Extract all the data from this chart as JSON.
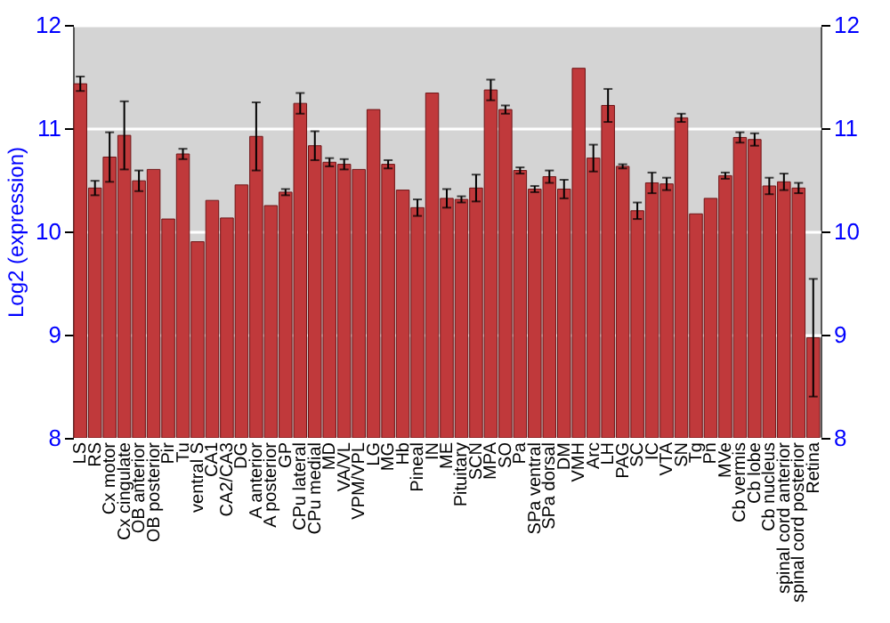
{
  "chart_data": {
    "type": "bar",
    "ylabel": "Log2 (expression)",
    "categories": [
      "LS",
      "RS",
      "Cx motor",
      "Cx cingulate",
      "OB anterior",
      "OB posterior",
      "Pir",
      "Tu",
      "ventral S",
      "CA1",
      "CA2/CA3",
      "DG",
      "A anterior",
      "A posterior",
      "GP",
      "CPu lateral",
      "CPu medial",
      "MD",
      "VA/VL",
      "VPM/VPL",
      "LG",
      "MG",
      "Hb",
      "Pineal",
      "IN",
      "ME",
      "Pituitary",
      "SCN",
      "MPA",
      "SO",
      "Pa",
      "SPa ventral",
      "SPa dorsal",
      "DM",
      "VMH",
      "Arc",
      "LH",
      "PAG",
      "SC",
      "IC",
      "VTA",
      "SN",
      "Tg",
      "Pn",
      "MVe",
      "Cb vermis",
      "Cb lobe",
      "Cb nucleus",
      "spinal cord anterior",
      "spinal cord posterior",
      "Retina"
    ],
    "values": [
      11.43,
      10.42,
      10.72,
      10.93,
      10.49,
      10.6,
      10.12,
      10.75,
      9.9,
      10.3,
      10.13,
      10.45,
      10.92,
      10.25,
      10.38,
      11.24,
      10.83,
      10.67,
      10.65,
      10.6,
      11.18,
      10.65,
      10.4,
      10.23,
      11.34,
      10.32,
      10.31,
      10.42,
      11.37,
      11.18,
      10.59,
      10.41,
      10.53,
      10.41,
      11.58,
      10.71,
      11.22,
      10.63,
      10.2,
      10.47,
      10.46,
      11.1,
      10.17,
      10.32,
      10.54,
      10.91,
      10.89,
      10.44,
      10.48,
      10.42,
      8.97
    ],
    "errors": [
      0.07,
      0.07,
      0.24,
      0.33,
      0.1,
      null,
      null,
      0.05,
      null,
      null,
      null,
      null,
      0.33,
      null,
      0.03,
      0.1,
      0.14,
      0.04,
      0.05,
      null,
      null,
      0.04,
      null,
      0.08,
      null,
      0.09,
      0.03,
      0.13,
      0.1,
      0.04,
      0.03,
      0.03,
      0.06,
      0.09,
      null,
      0.13,
      0.16,
      0.02,
      0.08,
      0.1,
      0.06,
      0.04,
      null,
      null,
      0.03,
      0.05,
      0.06,
      0.08,
      0.08,
      0.05,
      0.57
    ],
    "color": "#c0393b",
    "ylim": [
      8,
      12
    ],
    "yticks": [
      8,
      9,
      10,
      11,
      12
    ],
    "y2lim": [
      8,
      12
    ],
    "y2ticks": [
      8,
      9,
      10,
      11,
      12
    ],
    "grid": "y"
  }
}
